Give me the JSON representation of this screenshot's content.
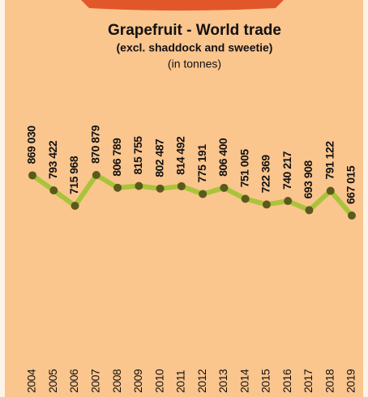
{
  "chart_data": {
    "type": "line",
    "title": "Grapefruit - World trade",
    "subtitle": "(excl. shaddock and sweetie)",
    "unit_label": "(in tonnes)",
    "categories": [
      "2004",
      "2005",
      "2006",
      "2007",
      "2008",
      "2009",
      "2010",
      "2011",
      "2012",
      "2013",
      "2014",
      "2015",
      "2016",
      "2017",
      "2018",
      "2019"
    ],
    "values": [
      869030,
      793422,
      715968,
      870879,
      806789,
      815755,
      802487,
      814492,
      775191,
      806400,
      751005,
      722369,
      740217,
      693908,
      791122,
      667015
    ],
    "value_labels": [
      "869 030",
      "793 422",
      "715 968",
      "870 879",
      "806 789",
      "815 755",
      "802 487",
      "814 492",
      "775 191",
      "806 400",
      "751 005",
      "722 369",
      "740 217",
      "693 908",
      "791 122",
      "667 015"
    ],
    "color": "#a9c43b",
    "marker_color": "#5b5a1c"
  }
}
